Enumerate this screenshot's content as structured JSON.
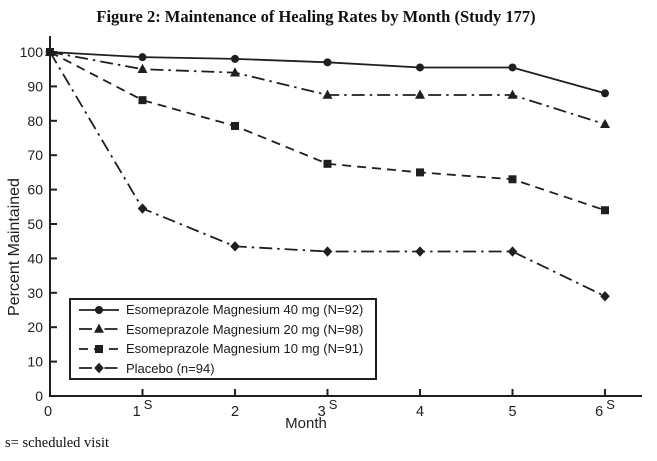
{
  "title": "Figure 2: Maintenance of Healing Rates by Month (Study 177)",
  "footnote": "s= scheduled visit",
  "chart_data": {
    "type": "line",
    "title": "Figure 2: Maintenance of Healing Rates by Month (Study 177)",
    "xlabel": "Month",
    "ylabel": "Percent Maintained",
    "ylim": [
      0,
      100
    ],
    "xlim": [
      0,
      6.4
    ],
    "grid": false,
    "legend_position": "lower-left",
    "line_color": "#1f1f1f",
    "x": [
      0,
      1,
      2,
      3,
      4,
      5,
      6
    ],
    "xticks": [
      {
        "label": "0",
        "sup": ""
      },
      {
        "label": "1",
        "sup": "S"
      },
      {
        "label": "2",
        "sup": ""
      },
      {
        "label": "3",
        "sup": "S"
      },
      {
        "label": "4",
        "sup": ""
      },
      {
        "label": "5",
        "sup": ""
      },
      {
        "label": "6",
        "sup": "S"
      }
    ],
    "yticks": [
      0,
      10,
      20,
      30,
      40,
      50,
      60,
      70,
      80,
      90,
      100
    ],
    "series": [
      {
        "name": "Esomeprazole Magnesium 40 mg (N=92)",
        "marker": "circle",
        "line": "solid",
        "values": [
          100,
          98.5,
          98,
          97,
          95.5,
          95.5,
          88
        ]
      },
      {
        "name": "Esomeprazole Magnesium 20 mg (N=98)",
        "marker": "triangle",
        "line": "dashdot",
        "values": [
          100,
          95,
          94,
          87.5,
          87.5,
          87.5,
          79
        ]
      },
      {
        "name": "Esomeprazole Magnesium 10 mg (N=91)",
        "marker": "square",
        "line": "dashed",
        "values": [
          100,
          86,
          78.5,
          67.5,
          65,
          63,
          54
        ]
      },
      {
        "name": "Placebo (n=94)",
        "marker": "diamond",
        "line": "dashdot",
        "values": [
          100,
          54.5,
          43.5,
          42,
          42,
          42,
          29
        ]
      }
    ]
  }
}
